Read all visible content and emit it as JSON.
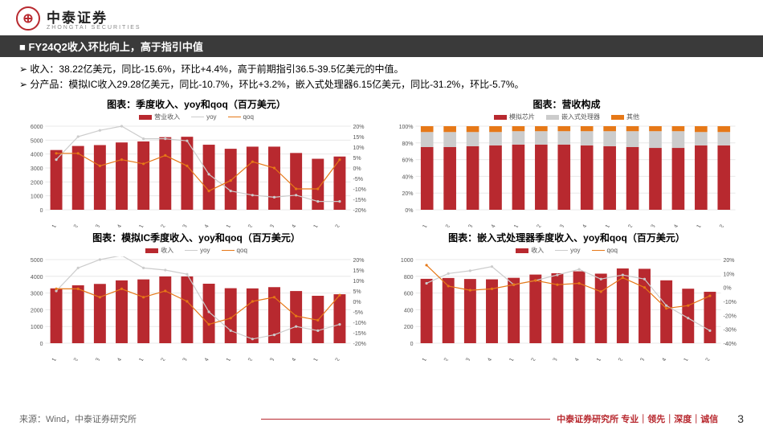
{
  "brand": {
    "cn": "中泰证券",
    "en": "ZHONGTAI SECURITIES",
    "logo_char": "⊕"
  },
  "title": "■ FY24Q2收入环比向上，高于指引中值",
  "bullets": [
    "收入：38.22亿美元，同比-15.6%，环比+4.4%，高于前期指引36.5-39.5亿美元的中值。",
    "分产品：模拟IC收入29.28亿美元，同比-10.7%，环比+3.2%，嵌入式处理器6.15亿美元，同比-31.2%，环比-5.7%。"
  ],
  "categories": [
    "21Q1",
    "21Q2",
    "21Q3",
    "21Q4",
    "22Q1",
    "22Q2",
    "22Q3",
    "22Q4",
    "23Q1",
    "23Q2",
    "23Q3",
    "23Q4",
    "24Q1",
    "24Q2"
  ],
  "chart1": {
    "title": "图表：季度收入、yoy和qoq（百万美元）",
    "legend": [
      "营业收入",
      "yoy",
      "qoq"
    ],
    "bars": [
      4289,
      4580,
      4643,
      4832,
      4905,
      5212,
      5241,
      4670,
      4379,
      4531,
      4532,
      4077,
      3661,
      3822
    ],
    "yoy": [
      4,
      15,
      18,
      20,
      14,
      14,
      13,
      -3,
      -11,
      -13,
      -14,
      -13,
      -16,
      -16
    ],
    "qoq": [
      7,
      7,
      1,
      4,
      2,
      6,
      1,
      -11,
      -6,
      3,
      0,
      -10,
      -10,
      4
    ],
    "ymax": 6000,
    "ystep": 1000,
    "y2min": -20,
    "y2max": 20,
    "y2step": 5,
    "colors": {
      "bar": "#b8292f",
      "yoy": "#cccccc",
      "qoq": "#e67817"
    }
  },
  "chart2": {
    "title": "图表：营收构成",
    "legend": [
      "模拟芯片",
      "嵌入式处理器",
      "其他"
    ],
    "stacks": [
      [
        75,
        18,
        7
      ],
      [
        75,
        18,
        7
      ],
      [
        76,
        17,
        7
      ],
      [
        77,
        16,
        7
      ],
      [
        78,
        16,
        6
      ],
      [
        78,
        16,
        6
      ],
      [
        78,
        16,
        6
      ],
      [
        77,
        17,
        6
      ],
      [
        76,
        18,
        6
      ],
      [
        75,
        19,
        6
      ],
      [
        74,
        20,
        6
      ],
      [
        74,
        20,
        6
      ],
      [
        77,
        16,
        7
      ],
      [
        77,
        16,
        7
      ]
    ],
    "ymax": 100,
    "ystep": 20,
    "colors": [
      "#b8292f",
      "#cccccc",
      "#e67817"
    ]
  },
  "chart3": {
    "title": "图表：模拟IC季度收入、yoy和qoq（百万美元）",
    "legend": [
      "收入",
      "yoy",
      "qoq"
    ],
    "bars": [
      3280,
      3464,
      3546,
      3758,
      3816,
      3992,
      3993,
      3558,
      3289,
      3278,
      3353,
      3120,
      2836,
      2928
    ],
    "yoy": [
      5,
      16,
      20,
      22,
      16,
      15,
      13,
      -5,
      -14,
      -18,
      -16,
      -12,
      -14,
      -11
    ],
    "qoq": [
      6,
      6,
      2,
      6,
      2,
      5,
      0,
      -11,
      -8,
      0,
      2,
      -7,
      -9,
      3
    ],
    "ymax": 5000,
    "ystep": 1000,
    "y2min": -20,
    "y2max": 20,
    "y2step": 5,
    "colors": {
      "bar": "#b8292f",
      "yoy": "#cccccc",
      "qoq": "#e67817"
    }
  },
  "chart4": {
    "title": "图表：嵌入式处理器季度收入、yoy和qoq（百万美元）",
    "legend": [
      "收入",
      "yoy",
      "qoq"
    ],
    "bars": [
      770,
      780,
      768,
      764,
      782,
      821,
      837,
      860,
      832,
      894,
      890,
      752,
      652,
      615
    ],
    "yoy": [
      3,
      10,
      12,
      15,
      2,
      5,
      9,
      13,
      6,
      9,
      6,
      -13,
      -22,
      -31
    ],
    "qoq": [
      16,
      1,
      -2,
      -1,
      2,
      5,
      2,
      3,
      -3,
      7,
      0,
      -15,
      -13,
      -6
    ],
    "ymax": 1000,
    "ystep": 200,
    "y2min": -40,
    "y2max": 20,
    "y2step": 10,
    "colors": {
      "bar": "#b8292f",
      "yoy": "#cccccc",
      "qoq": "#e67817"
    }
  },
  "footer": {
    "source": "来源：Wind，中泰证券研究所",
    "tagline": "中泰证券研究所 专业｜领先｜深度｜诚信",
    "page": "3"
  },
  "style": {
    "grid": "#e8e8e8",
    "axis": "#999",
    "text": "#555",
    "bg": "#ffffff"
  }
}
